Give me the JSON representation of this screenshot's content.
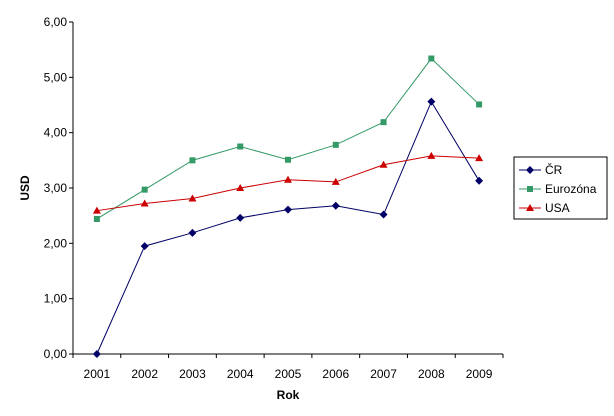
{
  "chart_data": {
    "type": "line",
    "title": "",
    "xlabel": "Rok",
    "ylabel": "USD",
    "categories": [
      "2001",
      "2002",
      "2003",
      "2004",
      "2005",
      "2006",
      "2007",
      "2008",
      "2009"
    ],
    "y_ticks": [
      "0,00",
      "1,00",
      "2,00",
      "3,00",
      "4,00",
      "5,00",
      "6,00"
    ],
    "ylim": [
      0,
      6
    ],
    "grid": false,
    "legend_position": "right",
    "series": [
      {
        "name": "ČR",
        "color": "#000066",
        "marker": "diamond",
        "values": [
          0.0,
          1.95,
          2.19,
          2.46,
          2.61,
          2.68,
          2.52,
          4.56,
          3.13
        ]
      },
      {
        "name": "Eurozóna",
        "color": "#339966",
        "marker": "square",
        "values": [
          2.44,
          2.97,
          3.5,
          3.75,
          3.51,
          3.78,
          4.19,
          5.34,
          4.51
        ]
      },
      {
        "name": "USA",
        "color": "#cc0000",
        "marker": "triangle",
        "values": [
          2.59,
          2.72,
          2.81,
          3.0,
          3.15,
          3.11,
          3.42,
          3.58,
          3.54
        ]
      }
    ]
  }
}
